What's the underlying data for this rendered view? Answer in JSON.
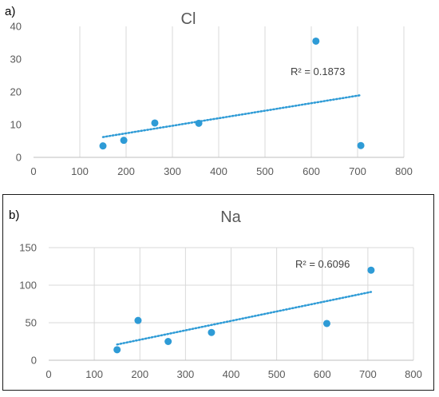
{
  "colors": {
    "marker": "#2e9bd6",
    "trend": "#2e9bd6"
  },
  "chart_data": [
    {
      "type": "scatter",
      "panel_label": "a)",
      "title": "Cl",
      "xlabel": "",
      "ylabel": "",
      "xlim": [
        0,
        800
      ],
      "ylim": [
        0,
        40
      ],
      "x_ticks": [
        "0",
        "100",
        "200",
        "300",
        "400",
        "500",
        "600",
        "700",
        "800"
      ],
      "y_ticks": [
        "0",
        "10",
        "20",
        "30",
        "40"
      ],
      "grid": "vertical",
      "x": [
        150,
        195,
        262,
        357,
        610,
        707
      ],
      "y": [
        3.5,
        5.2,
        10.5,
        10.4,
        35.5,
        3.6
      ],
      "trendline": {
        "type": "linear",
        "x_range": [
          150,
          707
        ],
        "y_range": [
          6.2,
          19.0
        ],
        "r2_label": "R² = 0.1873"
      }
    },
    {
      "type": "scatter",
      "panel_label": "b)",
      "title": "Na",
      "xlabel": "",
      "ylabel": "",
      "xlim": [
        0,
        800
      ],
      "ylim": [
        0,
        150
      ],
      "x_ticks": [
        "0",
        "100",
        "200",
        "300",
        "400",
        "500",
        "600",
        "700",
        "800"
      ],
      "y_ticks": [
        "0",
        "50",
        "100",
        "150"
      ],
      "grid": "both",
      "x": [
        150,
        196,
        262,
        357,
        610,
        707
      ],
      "y": [
        14,
        53,
        25,
        37,
        49,
        120
      ],
      "trendline": {
        "type": "linear",
        "x_range": [
          150,
          707
        ],
        "y_range": [
          21,
          91
        ],
        "r2_label": "R² = 0.6096"
      }
    }
  ]
}
